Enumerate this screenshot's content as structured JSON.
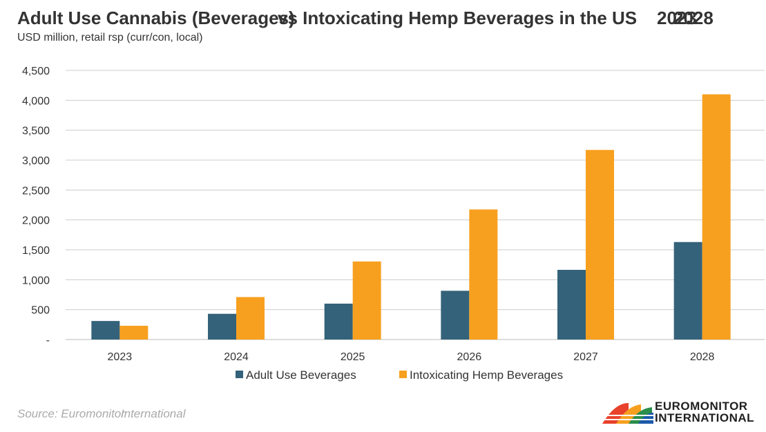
{
  "chart_data": {
    "type": "bar",
    "title_parts": [
      "Adult Use Cannabis (Beverages)",
      "vs Intoxicating Hemp Beverages in the US",
      "2023",
      "2028"
    ],
    "subtitle": "USD million, retail rsp (curr/con, local)",
    "categories": [
      "2023",
      "2024",
      "2025",
      "2026",
      "2027",
      "2028"
    ],
    "series": [
      {
        "name": "Adult Use Beverages",
        "color": "#34627a",
        "values": [
          310,
          430,
          600,
          815,
          1165,
          1630
        ]
      },
      {
        "name": "Intoxicating Hemp Beverages",
        "color": "#f7a01f",
        "values": [
          230,
          710,
          1305,
          2175,
          3170,
          4100
        ]
      }
    ],
    "ylim": [
      0,
      4500
    ],
    "yticks": [
      0,
      500,
      1000,
      1500,
      2000,
      2500,
      3000,
      3500,
      4000,
      4500
    ],
    "ytick_labels": [
      "-",
      "500",
      "1,000",
      "1,500",
      "2,000",
      "2,500",
      "3,000",
      "3,500",
      "4,000",
      "4,500"
    ],
    "grid": true,
    "legend_position": "bottom-center",
    "source_parts": [
      "Source: Euromonitor",
      "International"
    ],
    "logo": {
      "line1": "EUROMONITOR",
      "line2": "INTERNATIONAL"
    }
  }
}
